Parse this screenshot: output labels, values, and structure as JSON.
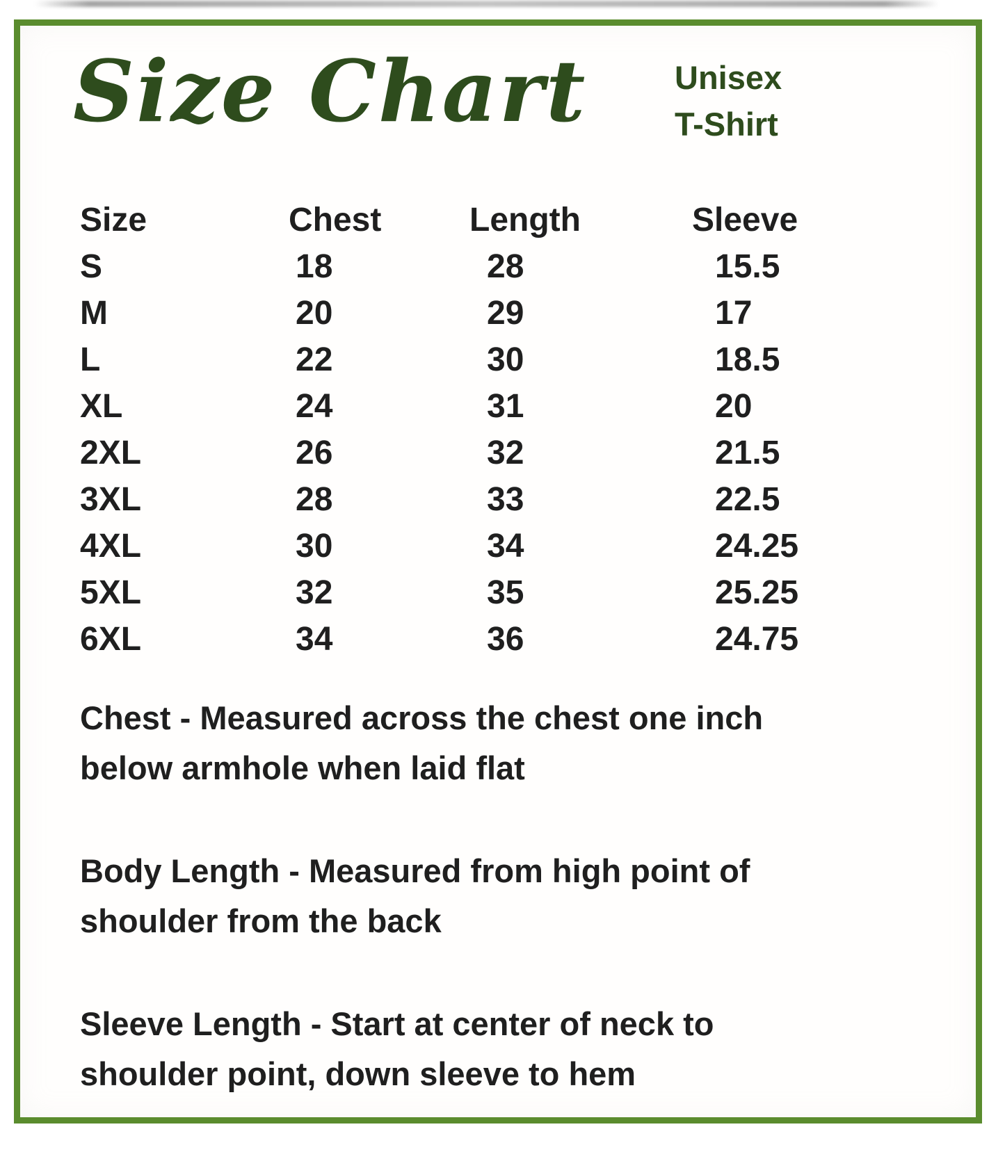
{
  "colors": {
    "border_green": "#5a8c2e",
    "heading_green": "#2e4c1d",
    "table_text": "#1f1f1f",
    "background": "#ffffff"
  },
  "header": {
    "title": "Size Chart",
    "product_line1": "Unisex",
    "product_line2": "T-Shirt"
  },
  "chart_data": {
    "type": "table",
    "title": "Size Chart",
    "subtitle": "Unisex T-Shirt",
    "columns": [
      "Size",
      "Chest",
      "Length",
      "Sleeve"
    ],
    "rows": [
      [
        "S",
        "18",
        "28",
        "15.5"
      ],
      [
        "M",
        "20",
        "29",
        "17"
      ],
      [
        "L",
        "22",
        "30",
        "18.5"
      ],
      [
        "XL",
        "24",
        "31",
        "20"
      ],
      [
        "2XL",
        "26",
        "32",
        "21.5"
      ],
      [
        "3XL",
        "28",
        "33",
        "22.5"
      ],
      [
        "4XL",
        "30",
        "34",
        "24.25"
      ],
      [
        "5XL",
        "32",
        "35",
        "25.25"
      ],
      [
        "6XL",
        "34",
        "36",
        "24.75"
      ]
    ]
  },
  "notes": [
    {
      "lines": [
        "Chest - Measured across the chest one inch",
        "below armhole when laid flat"
      ]
    },
    {
      "lines": [
        "Body Length - Measured from high point of",
        "shoulder from the back"
      ]
    },
    {
      "lines": [
        "Sleeve Length - Start at center of neck to",
        "shoulder point, down sleeve to hem"
      ]
    }
  ]
}
